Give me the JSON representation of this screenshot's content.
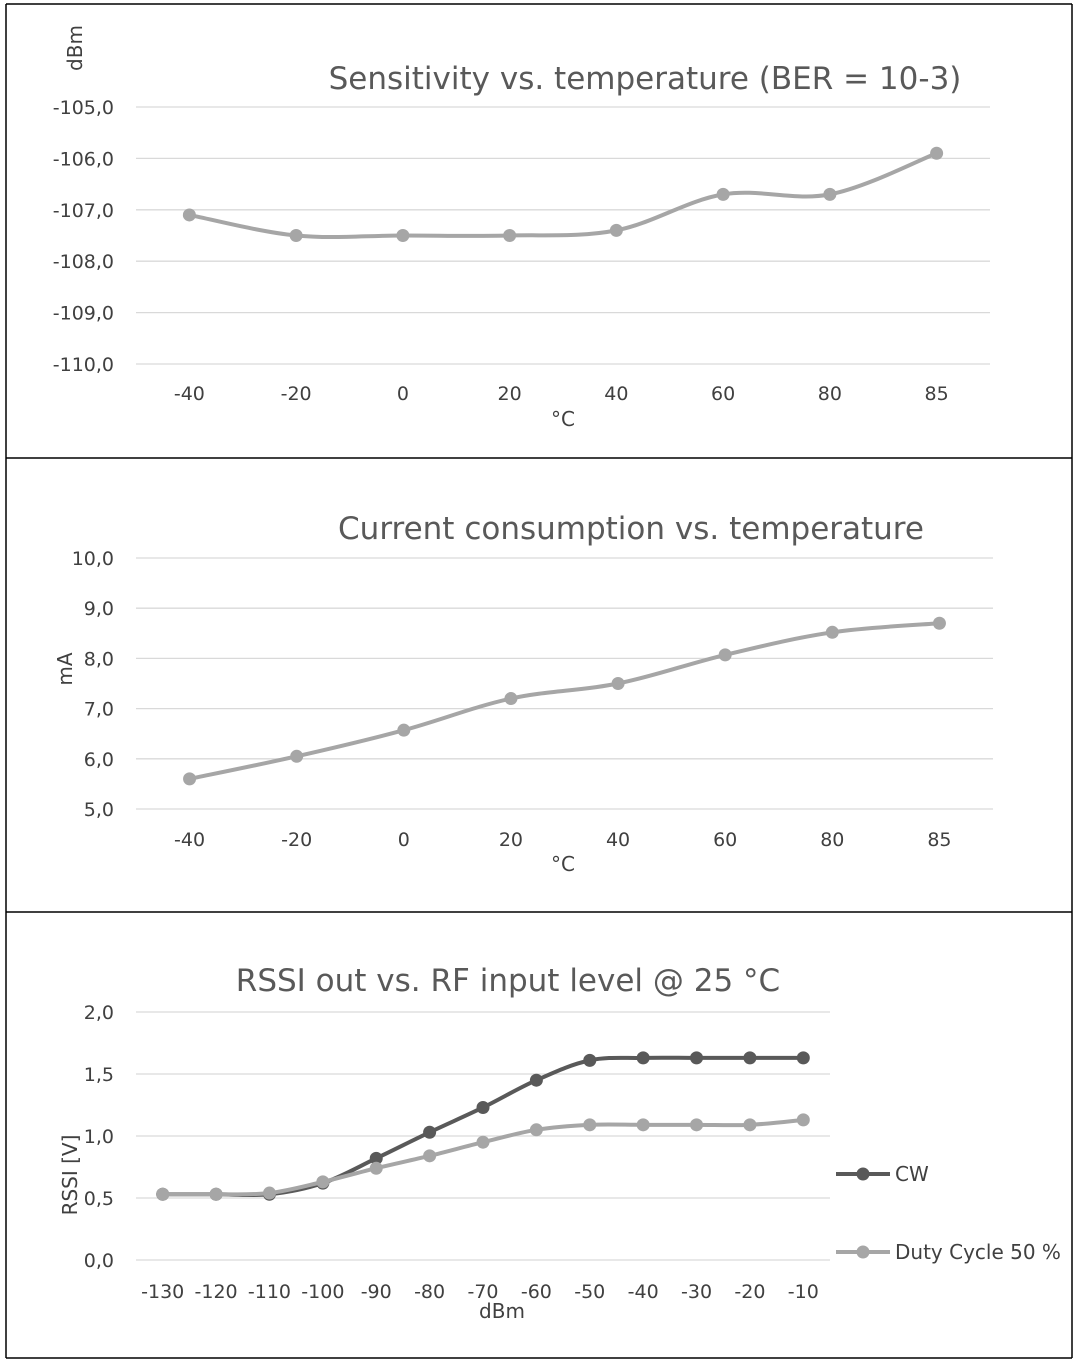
{
  "chart_data": [
    {
      "type": "line",
      "title": "Sensitivity vs. temperature (BER = 10-3)",
      "xlabel": "°C",
      "ylabel": "dBm",
      "categories": [
        "-40",
        "-20",
        "0",
        "20",
        "40",
        "60",
        "80",
        "85"
      ],
      "series": [
        {
          "values": [
            -107.1,
            -107.5,
            -107.5,
            -107.5,
            -107.4,
            -106.7,
            -106.7,
            -105.9
          ]
        }
      ],
      "ylim": [
        -110.0,
        -105.0
      ],
      "yticks": [
        "-105,0",
        "-106,0",
        "-107,0",
        "-108,0",
        "-109,0",
        "-110,0"
      ],
      "grid": true,
      "legend": "none",
      "colors": [
        "#a6a6a6"
      ]
    },
    {
      "type": "line",
      "title": "Current consumption vs. temperature",
      "xlabel": "°C",
      "ylabel": "mA",
      "categories": [
        "-40",
        "-20",
        "0",
        "20",
        "40",
        "60",
        "80",
        "85"
      ],
      "series": [
        {
          "values": [
            5.6,
            6.05,
            6.57,
            7.2,
            7.5,
            8.07,
            8.52,
            8.7
          ]
        }
      ],
      "ylim": [
        5.0,
        10.0
      ],
      "yticks": [
        "10,0",
        "9,0",
        "8,0",
        "7,0",
        "6,0",
        "5,0"
      ],
      "grid": true,
      "legend": "none",
      "colors": [
        "#a6a6a6"
      ]
    },
    {
      "type": "line",
      "title": "RSSI out vs. RF input level @ 25 °C",
      "xlabel": "dBm",
      "ylabel": "RSSI [V]",
      "categories": [
        "-130",
        "-120",
        "-110",
        "-100",
        "-90",
        "-80",
        "-70",
        "-60",
        "-50",
        "-40",
        "-30",
        "-20",
        "-10"
      ],
      "series": [
        {
          "name": "CW",
          "values": [
            0.53,
            0.53,
            0.53,
            0.62,
            0.82,
            1.03,
            1.23,
            1.45,
            1.61,
            1.63,
            1.63,
            1.63,
            1.63
          ]
        },
        {
          "name": "Duty Cycle 50 %",
          "values": [
            0.53,
            0.53,
            0.54,
            0.63,
            0.74,
            0.84,
            0.95,
            1.05,
            1.09,
            1.09,
            1.09,
            1.09,
            1.13
          ]
        }
      ],
      "ylim": [
        0.0,
        2.0
      ],
      "yticks": [
        "2,0",
        "1,5",
        "1,0",
        "0,5",
        "0,0"
      ],
      "grid": true,
      "legend": "right",
      "colors": [
        "#595959",
        "#a6a6a6"
      ]
    }
  ]
}
